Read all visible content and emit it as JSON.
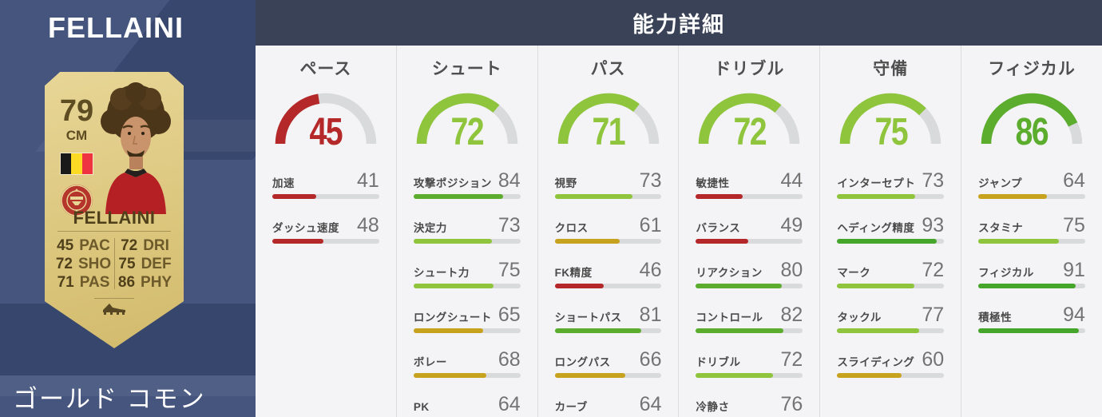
{
  "player": {
    "name": "FELLAINI",
    "rating": "79",
    "position": "CM",
    "card_type": "ゴールド コモン",
    "card_stats": [
      {
        "value": "45",
        "label": "PAC"
      },
      {
        "value": "72",
        "label": "SHO"
      },
      {
        "value": "71",
        "label": "PAS"
      },
      {
        "value": "72",
        "label": "DRI"
      },
      {
        "value": "75",
        "label": "DEF"
      },
      {
        "value": "86",
        "label": "PHY"
      }
    ]
  },
  "header": {
    "title": "能力詳細"
  },
  "columns": [
    {
      "label": "ペース",
      "gauge": 45,
      "stats": [
        {
          "label": "加速",
          "value": 41
        },
        {
          "label": "ダッシュ速度",
          "value": 48
        }
      ]
    },
    {
      "label": "シュート",
      "gauge": 72,
      "stats": [
        {
          "label": "攻撃ポジション",
          "value": 84
        },
        {
          "label": "決定力",
          "value": 73
        },
        {
          "label": "シュート力",
          "value": 75
        },
        {
          "label": "ロングシュート",
          "value": 65
        },
        {
          "label": "ボレー",
          "value": 68
        },
        {
          "label": "PK",
          "value": 64
        }
      ]
    },
    {
      "label": "パス",
      "gauge": 71,
      "stats": [
        {
          "label": "視野",
          "value": 73
        },
        {
          "label": "クロス",
          "value": 61
        },
        {
          "label": "FK精度",
          "value": 46
        },
        {
          "label": "ショートパス",
          "value": 81
        },
        {
          "label": "ロングパス",
          "value": 66
        },
        {
          "label": "カーブ",
          "value": 64
        }
      ]
    },
    {
      "label": "ドリブル",
      "gauge": 72,
      "stats": [
        {
          "label": "敏捷性",
          "value": 44
        },
        {
          "label": "バランス",
          "value": 49
        },
        {
          "label": "リアクション",
          "value": 80
        },
        {
          "label": "コントロール",
          "value": 82
        },
        {
          "label": "ドリブル",
          "value": 72
        },
        {
          "label": "冷静さ",
          "value": 76
        }
      ]
    },
    {
      "label": "守備",
      "gauge": 75,
      "stats": [
        {
          "label": "インターセプト",
          "value": 73
        },
        {
          "label": "ヘディング精度",
          "value": 93
        },
        {
          "label": "マーク",
          "value": 72
        },
        {
          "label": "タックル",
          "value": 77
        },
        {
          "label": "スライディング",
          "value": 60
        }
      ]
    },
    {
      "label": "フィジカル",
      "gauge": 86,
      "stats": [
        {
          "label": "ジャンプ",
          "value": 64
        },
        {
          "label": "スタミナ",
          "value": 75
        },
        {
          "label": "フィジカル",
          "value": 91
        },
        {
          "label": "積極性",
          "value": 94
        }
      ]
    }
  ],
  "colors": {
    "sidebar_blue": "#45557e",
    "header_bg": "#3a4257",
    "panel_bg": "#f4f4f6",
    "card_gold": "#ddc87f",
    "bar_track": "#d9dadc",
    "low": "#b5282a",
    "mid": "#c7a21f",
    "good": "#8fc53c",
    "great": "#5cad2e",
    "elite": "#46a52b"
  }
}
